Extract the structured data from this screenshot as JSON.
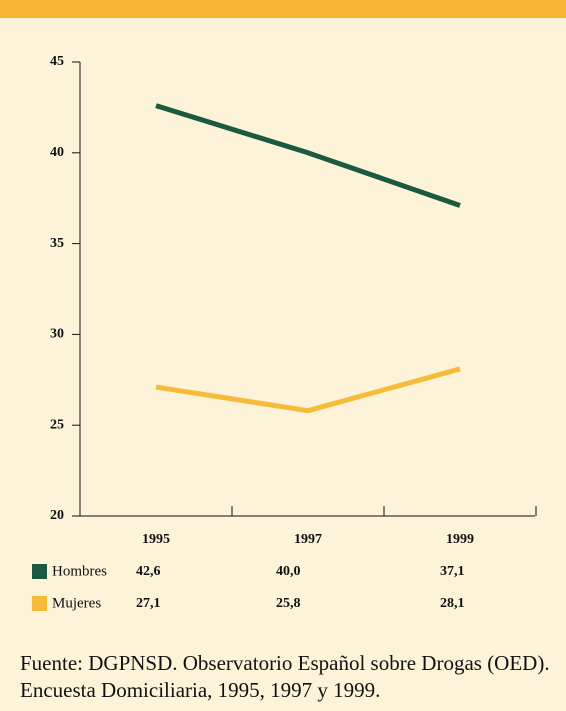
{
  "chart_data": {
    "type": "line",
    "categories": [
      "1995",
      "1997",
      "1999"
    ],
    "series": [
      {
        "name": "Hombres",
        "color": "#1b5a3e",
        "values": [
          42.6,
          40.0,
          37.1
        ],
        "value_labels": [
          "42,6",
          "40,0",
          "37,1"
        ]
      },
      {
        "name": "Mujeres",
        "color": "#f7bb3a",
        "values": [
          27.1,
          25.8,
          28.1
        ],
        "value_labels": [
          "27,1",
          "25,8",
          "28,1"
        ]
      }
    ],
    "ylim": [
      20,
      45
    ],
    "yticks": [
      20,
      25,
      30,
      35,
      40,
      45
    ],
    "source": "Fuente: DGPNSD. Observatorio Español sobre Drogas (OED). Encuesta Domiciliaria, 1995, 1997 y 1999."
  }
}
